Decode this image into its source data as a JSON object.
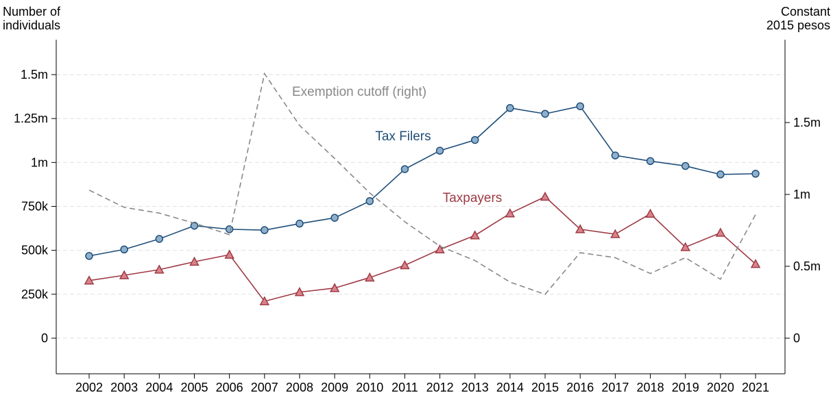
{
  "chart_data": {
    "type": "line",
    "x": [
      "2002",
      "2003",
      "2004",
      "2005",
      "2006",
      "2007",
      "2008",
      "2009",
      "2010",
      "2011",
      "2012",
      "2013",
      "2014",
      "2015",
      "2016",
      "2017",
      "2018",
      "2019",
      "2020",
      "2021"
    ],
    "y_left": {
      "label": "Number of\nindividuals",
      "ylim": [
        0,
        1500000
      ],
      "ticks": [
        0,
        250000,
        500000,
        750000,
        1000000,
        1250000,
        1500000
      ],
      "tick_labels": [
        "0",
        "250k",
        "500k",
        "750k",
        "1m",
        "1.25m",
        "1.5m"
      ]
    },
    "y_right": {
      "label": "Constant\n2015 pesos",
      "ticks": [
        0,
        500000,
        1000000,
        1500000
      ],
      "tick_labels": [
        "0",
        "0.5m",
        "1m",
        "1.5m"
      ]
    },
    "grid": true,
    "series": [
      {
        "name": "Tax Filers",
        "axis": "left",
        "color": "#1f4e79",
        "marker": "circle",
        "marker_fill": "#8fb0cc",
        "values": [
          468000,
          505000,
          565000,
          640000,
          620000,
          615000,
          652000,
          685000,
          780000,
          962000,
          1067000,
          1128000,
          1310000,
          1277000,
          1320000,
          1040000,
          1008000,
          980000,
          932000,
          936000
        ]
      },
      {
        "name": "Taxpayers",
        "axis": "left",
        "color": "#9e3a44",
        "marker": "triangle",
        "marker_fill": "#d9838b",
        "values": [
          328000,
          358000,
          390000,
          435000,
          475000,
          210000,
          262000,
          285000,
          345000,
          415000,
          505000,
          585000,
          710000,
          805000,
          620000,
          592000,
          708000,
          518000,
          600000,
          422000
        ]
      },
      {
        "name": "Exemption cutoff (right)",
        "axis": "right",
        "color": "#888888",
        "dashed": true,
        "values": [
          1030000,
          910000,
          870000,
          800000,
          720000,
          1840000,
          1480000,
          1250000,
          1010000,
          810000,
          640000,
          540000,
          390000,
          305000,
          595000,
          560000,
          450000,
          560000,
          410000,
          860000
        ]
      }
    ]
  }
}
